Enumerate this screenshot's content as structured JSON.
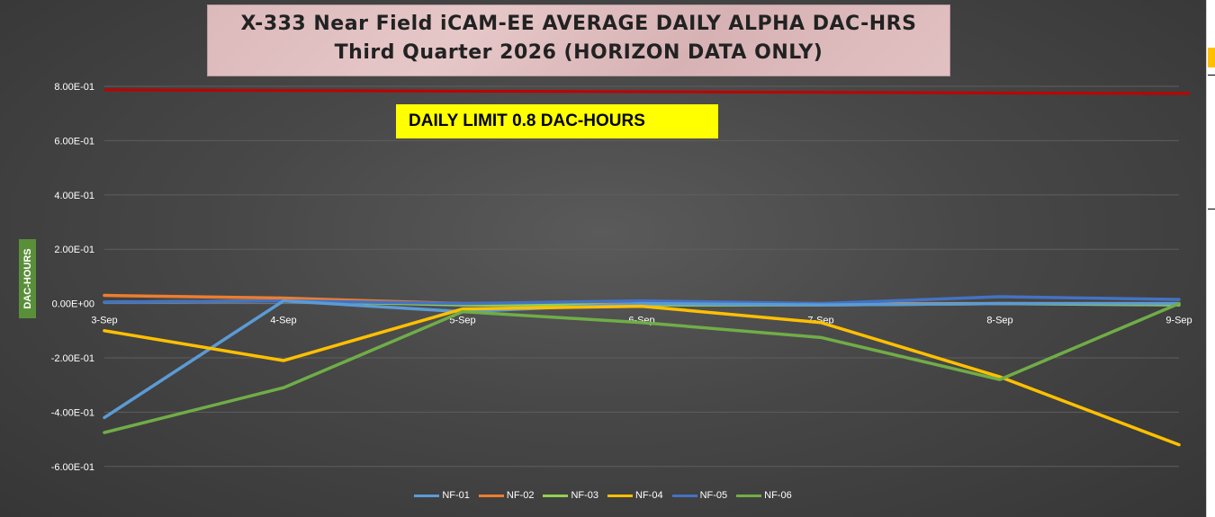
{
  "title": {
    "line1": "X-333 Near Field iCAM-EE AVERAGE DAILY ALPHA DAC-HRS",
    "line2": "Third Quarter 2026 (HORIZON DATA ONLY)"
  },
  "limit_label": "DAILY LIMIT 0.8 DAC-HOURS",
  "chart_data": {
    "type": "line",
    "title": "X-333 Near Field iCAM-EE AVERAGE DAILY ALPHA DAC-HRS Third Quarter 2026 (HORIZON DATA ONLY)",
    "xlabel": "",
    "ylabel": "DAC-HOURS",
    "categories": [
      "3-Sep",
      "4-Sep",
      "5-Sep",
      "6-Sep",
      "7-Sep",
      "8-Sep",
      "9-Sep"
    ],
    "ylim": [
      -0.7,
      0.8
    ],
    "yticks": [
      {
        "value": 0.8,
        "label": "8.00E-01"
      },
      {
        "value": 0.6,
        "label": "6.00E-01"
      },
      {
        "value": 0.4,
        "label": "4.00E-01"
      },
      {
        "value": 0.2,
        "label": "2.00E-01"
      },
      {
        "value": 0.0,
        "label": "0.00E+00"
      },
      {
        "value": -0.2,
        "label": "-2.00E-01"
      },
      {
        "value": -0.4,
        "label": "-4.00E-01"
      },
      {
        "value": -0.6,
        "label": "-6.00E-01"
      }
    ],
    "grid": true,
    "legend_position": "bottom",
    "limit_line": {
      "value": 0.8,
      "end_value": 0.78,
      "color": "#c00000"
    },
    "series": [
      {
        "name": "NF-01",
        "color": "#5b9bd5",
        "values": [
          -0.42,
          0.01,
          -0.03,
          0.0,
          -0.005,
          0.0,
          0.0
        ]
      },
      {
        "name": "NF-02",
        "color": "#ed7d31",
        "values": [
          0.03,
          0.02,
          0.0,
          0.0,
          0.0,
          0.0,
          0.0
        ]
      },
      {
        "name": "NF-03",
        "color": "#92d050",
        "values": [
          0.005,
          0.01,
          -0.005,
          -0.005,
          -0.005,
          0.0,
          -0.005
        ]
      },
      {
        "name": "NF-04",
        "color": "#ffc000",
        "values": [
          -0.1,
          -0.21,
          -0.02,
          -0.01,
          -0.07,
          -0.27,
          -0.52
        ]
      },
      {
        "name": "NF-05",
        "color": "#4472c4",
        "values": [
          0.005,
          0.01,
          0.0,
          0.01,
          0.0,
          0.025,
          0.015
        ]
      },
      {
        "name": "NF-06",
        "color": "#70ad47",
        "values": [
          -0.475,
          -0.31,
          -0.03,
          -0.07,
          -0.125,
          -0.28,
          0.0
        ]
      }
    ]
  }
}
